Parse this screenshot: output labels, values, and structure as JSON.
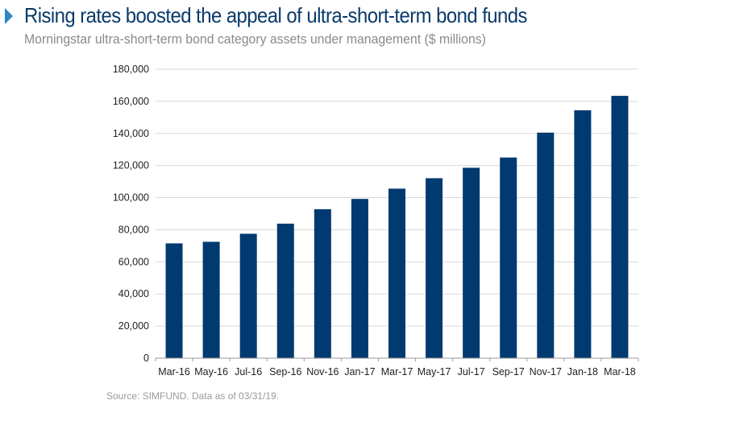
{
  "header": {
    "title": "Rising rates boosted the appeal of ultra-short-term bond funds",
    "subtitle": "Morningstar ultra-short-term bond category assets under management ($ millions)",
    "accent_color": "#2e86c8",
    "title_color": "#0a3a6a"
  },
  "footer": {
    "source": "Source: SIMFUND. Data as of 03/31/19."
  },
  "chart_data": {
    "type": "bar",
    "categories": [
      "Mar-16",
      "May-16",
      "Jul-16",
      "Sep-16",
      "Nov-16",
      "Jan-17",
      "Mar-17",
      "May-17",
      "Jul-17",
      "Sep-17",
      "Nov-17",
      "Jan-18",
      "Mar-18"
    ],
    "values": [
      71500,
      72500,
      77500,
      83800,
      92800,
      99200,
      105600,
      112100,
      118600,
      125000,
      140500,
      154400,
      163400
    ],
    "title": "",
    "xlabel": "",
    "ylabel": "",
    "ylim": [
      0,
      180000
    ],
    "yticks": [
      "0",
      "20,000",
      "40,000",
      "60,000",
      "80,000",
      "100,000",
      "120,000",
      "140,000",
      "160,000",
      "180,000"
    ],
    "grid": true,
    "legend": "none",
    "bar_color": "#003a70"
  }
}
